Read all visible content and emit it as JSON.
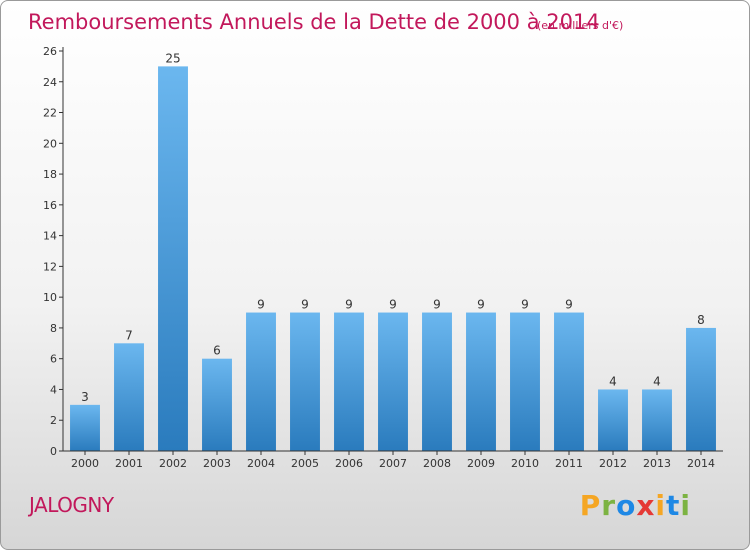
{
  "chart_data": {
    "type": "bar",
    "title": "Remboursements Annuels de la Dette de 2000 à 2014",
    "subtitle": "(en milliers d'€)",
    "categories": [
      "2000",
      "2001",
      "2002",
      "2003",
      "2004",
      "2005",
      "2006",
      "2007",
      "2008",
      "2009",
      "2010",
      "2011",
      "2012",
      "2013",
      "2014"
    ],
    "values": [
      3,
      7,
      25,
      6,
      9,
      9,
      9,
      9,
      9,
      9,
      9,
      9,
      4,
      4,
      8
    ],
    "ylim": [
      0,
      26
    ],
    "yticks": [
      0,
      2,
      4,
      6,
      8,
      10,
      12,
      14,
      16,
      18,
      20,
      22,
      24,
      26
    ],
    "xlabel": "",
    "ylabel": "",
    "grid": false,
    "bar_color_top": "#6bb7ef",
    "bar_color_bottom": "#2a7bbd"
  },
  "footer": {
    "commune": "JALOGNY",
    "logo": "Proxiti",
    "logo_colors": [
      "#f5a623",
      "#7cb342",
      "#1e88e5",
      "#e53935",
      "#f5a623",
      "#1e88e5",
      "#7cb342"
    ]
  }
}
